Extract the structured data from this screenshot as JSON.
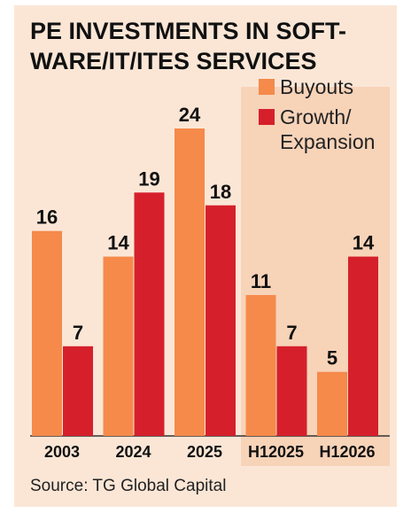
{
  "chart_data": {
    "type": "bar",
    "title": [
      "PE INVESTMENTS IN SOFT-",
      "WARE/IT/ITES SERVICES"
    ],
    "categories": [
      "2003",
      "2024",
      "2025",
      "H12025",
      "H12026"
    ],
    "series": [
      {
        "name": "Buyouts",
        "color": "#f58a4b",
        "values": [
          16,
          14,
          24,
          11,
          5
        ]
      },
      {
        "name": "Growth/ Expansion",
        "color": "#d5202c",
        "values": [
          7,
          19,
          18,
          7,
          14
        ]
      }
    ],
    "source": "Source: TG Global Capital"
  }
}
